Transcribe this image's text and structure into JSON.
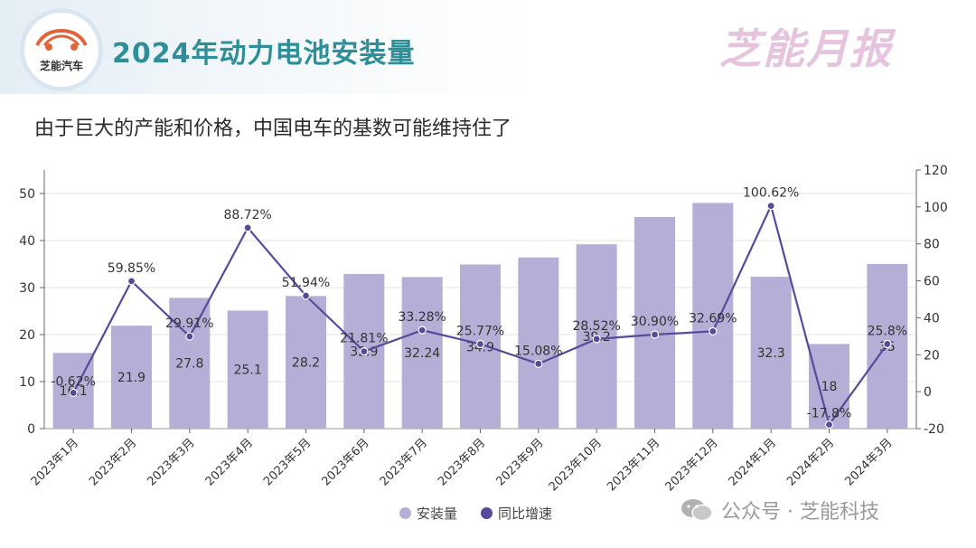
{
  "header": {
    "logo_text": "芝能汽车",
    "title": "2024年动力电池安装量",
    "brand": "芝能月报"
  },
  "subtitle": "由于巨大的产能和价格，中国电车的基数可能维持住了",
  "watermark": "公众号 · 芝能科技",
  "colors": {
    "bar": "#b3afd6",
    "line": "#574a9b",
    "title": "#2e8f9a",
    "brand": "#e6c3de"
  },
  "chart_data": {
    "type": "bar+line",
    "categories": [
      "2023年1月",
      "2023年2月",
      "2023年3月",
      "2023年4月",
      "2023年5月",
      "2023年6月",
      "2023年7月",
      "2023年8月",
      "2023年9月",
      "2023年10月",
      "2023年11月",
      "2023年12月",
      "2024年1月",
      "2024年2月",
      "2024年3月"
    ],
    "series": [
      {
        "name": "安装量",
        "type": "bar",
        "axis": "left",
        "values": [
          16.1,
          21.9,
          27.8,
          25.1,
          28.2,
          32.9,
          32.24,
          34.9,
          36.4,
          39.2,
          45,
          48,
          32.3,
          18,
          35
        ],
        "labels": [
          "16.1",
          "21.9",
          "27.8",
          "25.1",
          "28.2",
          "32.9",
          "32.24",
          "34.9",
          "",
          "39.2",
          "",
          "",
          "32.3",
          "18",
          "35"
        ]
      },
      {
        "name": "同比增速",
        "type": "line",
        "axis": "right",
        "values": [
          -0.62,
          59.85,
          29.91,
          88.72,
          51.94,
          21.81,
          33.28,
          25.77,
          15.08,
          28.52,
          30.9,
          32.69,
          100.62,
          -17.8,
          25.8
        ],
        "labels": [
          "-0.62%",
          "59.85%",
          "29.91%",
          "88.72%",
          "51.94%",
          "21.81%",
          "33.28%",
          "25.77%",
          "15.08%",
          "28.52%",
          "30.90%",
          "32.69%",
          "100.62%",
          "-17.8%",
          "25.8%"
        ]
      }
    ],
    "y_left": {
      "min": 0,
      "max": 55,
      "ticks": [
        0,
        10,
        20,
        30,
        40,
        50
      ]
    },
    "y_right": {
      "min": -20,
      "max": 120,
      "ticks": [
        -20,
        0,
        20,
        40,
        60,
        80,
        100,
        120
      ]
    },
    "legend": [
      "安装量",
      "同比增速"
    ]
  }
}
